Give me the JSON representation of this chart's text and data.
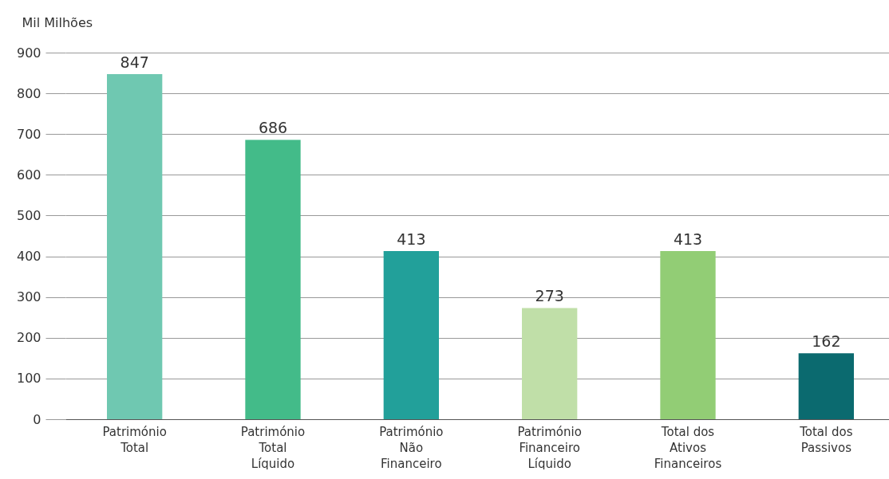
{
  "chart_data": {
    "type": "bar",
    "ylabel": "Mil Milhões",
    "categories": [
      "Património Total",
      "Património Total Líquido",
      "Património Não Financeiro",
      "Património Financeiro Líquido",
      "Total dos Ativos Financeiros",
      "Total dos Passivos"
    ],
    "values": [
      847,
      686,
      413,
      273,
      413,
      162
    ],
    "colors": [
      "#6fc8b1",
      "#43bb89",
      "#22a09a",
      "#c0dfa8",
      "#92cd75",
      "#0b6a6f"
    ],
    "ylim": [
      0,
      900
    ],
    "yticks": [
      0,
      100,
      200,
      300,
      400,
      500,
      600,
      700,
      800,
      900
    ],
    "grid": "y",
    "data_labels": true,
    "legend": false
  }
}
